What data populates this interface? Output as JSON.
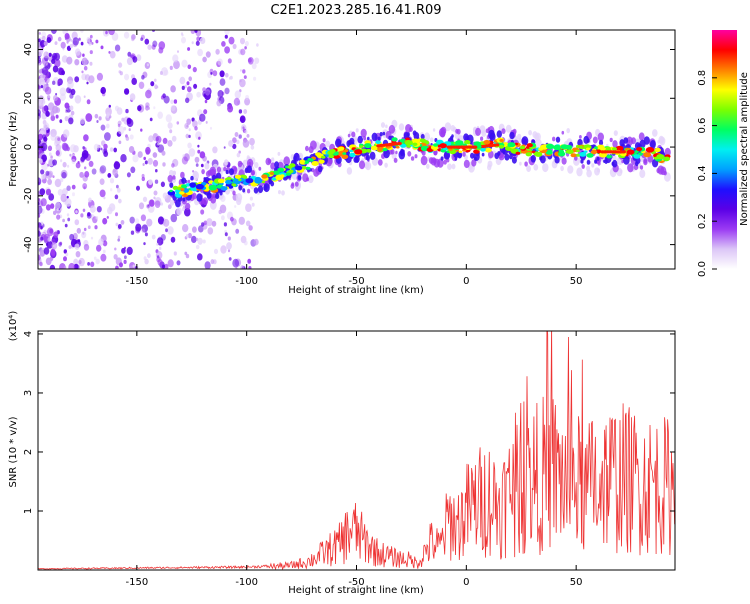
{
  "title": "C2E1.2023.285.16.41.R09",
  "chart_data": [
    {
      "type": "heatmap",
      "xlabel": "Height of straight line (km)",
      "ylabel": "Frequency (Hz)",
      "xlim": [
        -195,
        95
      ],
      "ylim": [
        -50,
        48
      ],
      "x_ticks": [
        -150,
        -100,
        -50,
        0,
        50
      ],
      "y_ticks": [
        -40,
        -20,
        0,
        20,
        40
      ],
      "colorbar": {
        "label": "Normalized spectral amplitude",
        "range": [
          0,
          1
        ],
        "ticks": [
          0.0,
          0.2,
          0.4,
          0.6,
          0.8
        ],
        "colormap": [
          "#ffffff",
          "#dcc6f7",
          "#9b3bf3",
          "#5a00e6",
          "#1e10ff",
          "#00a0ff",
          "#00f0f0",
          "#00ff60",
          "#7cff00",
          "#ffff00",
          "#ff8000",
          "#ff0000",
          "#ff00a0"
        ]
      },
      "ridge": {
        "x": [
          -135,
          -125,
          -115,
          -105,
          -95,
          -85,
          -75,
          -65,
          -55,
          -45,
          -35,
          -25,
          -15,
          -5,
          5,
          15,
          25,
          35,
          45,
          55,
          65,
          75,
          85,
          92
        ],
        "y": [
          -19,
          -17,
          -16,
          -14,
          -13,
          -11,
          -8,
          -4,
          -2,
          0,
          1,
          2,
          0,
          0,
          0,
          1,
          -1,
          -1,
          -1,
          -2,
          -2,
          -2,
          -2,
          -6
        ]
      },
      "noise_region_x": [
        -195,
        -95
      ],
      "noise_colors": [
        "#5a00e6",
        "#9b3bf3",
        "#c79af5",
        "#e4d3fa"
      ]
    },
    {
      "type": "line",
      "xlabel": "Height of straight line (km)",
      "ylabel": "SNR (10 * v/v)",
      "y_scale_label": "(x10⁴)",
      "xlim": [
        -195,
        95
      ],
      "ylim": [
        0,
        4.05
      ],
      "x_ticks": [
        -150,
        -100,
        -50,
        0,
        50
      ],
      "y_ticks": [
        1,
        2,
        3,
        4
      ],
      "line_color": "#ee3333",
      "envelope": {
        "x": [
          -195,
          -100,
          -80,
          -72,
          -65,
          -58,
          -52,
          -46,
          -40,
          -33,
          -26,
          -22,
          -16,
          -12,
          -8,
          -4,
          0,
          5,
          10,
          15,
          20,
          25,
          30,
          35,
          40,
          45,
          50,
          55,
          58,
          62,
          70,
          80,
          90,
          95
        ],
        "y": [
          0.02,
          0.05,
          0.08,
          0.15,
          0.3,
          0.45,
          0.75,
          0.5,
          0.3,
          0.22,
          0.18,
          0.12,
          0.5,
          0.4,
          0.9,
          0.8,
          1.05,
          1.2,
          1.3,
          1.15,
          1.35,
          1.45,
          1.6,
          1.7,
          1.75,
          1.6,
          1.55,
          1.4,
          1.6,
          1.65,
          1.65,
          1.55,
          1.5,
          1.5
        ]
      },
      "spike_max": {
        "x": 37,
        "y": 4.0
      }
    }
  ]
}
